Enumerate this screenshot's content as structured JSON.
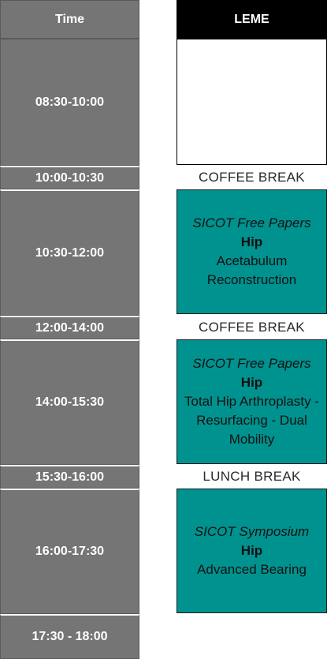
{
  "time_header": "Time",
  "room_header": "LEME",
  "time_slots": [
    "08:30-10:00",
    "10:00-10:30",
    "10:30-12:00",
    "12:00-14:00",
    "14:00-15:30",
    "15:30-16:00",
    "16:00-17:30",
    "17:30 - 18:00"
  ],
  "breaks": [
    "COFFEE BREAK",
    "COFFEE BREAK",
    "LUNCH BREAK"
  ],
  "sessions": [
    {
      "kind": "SICOT Free Papers",
      "topic": "Hip",
      "title": "Acetabulum Reconstruction"
    },
    {
      "kind": "SICOT Free Papers",
      "topic": "Hip",
      "title": "Total Hip Arthroplasty - Resurfacing - Dual Mobility"
    },
    {
      "kind": "SICOT Symposium",
      "topic": "Hip",
      "title": "Advanced Bearing"
    }
  ],
  "colors": {
    "time_cell": "#757575",
    "session": "#00928f",
    "header": "#000000"
  }
}
